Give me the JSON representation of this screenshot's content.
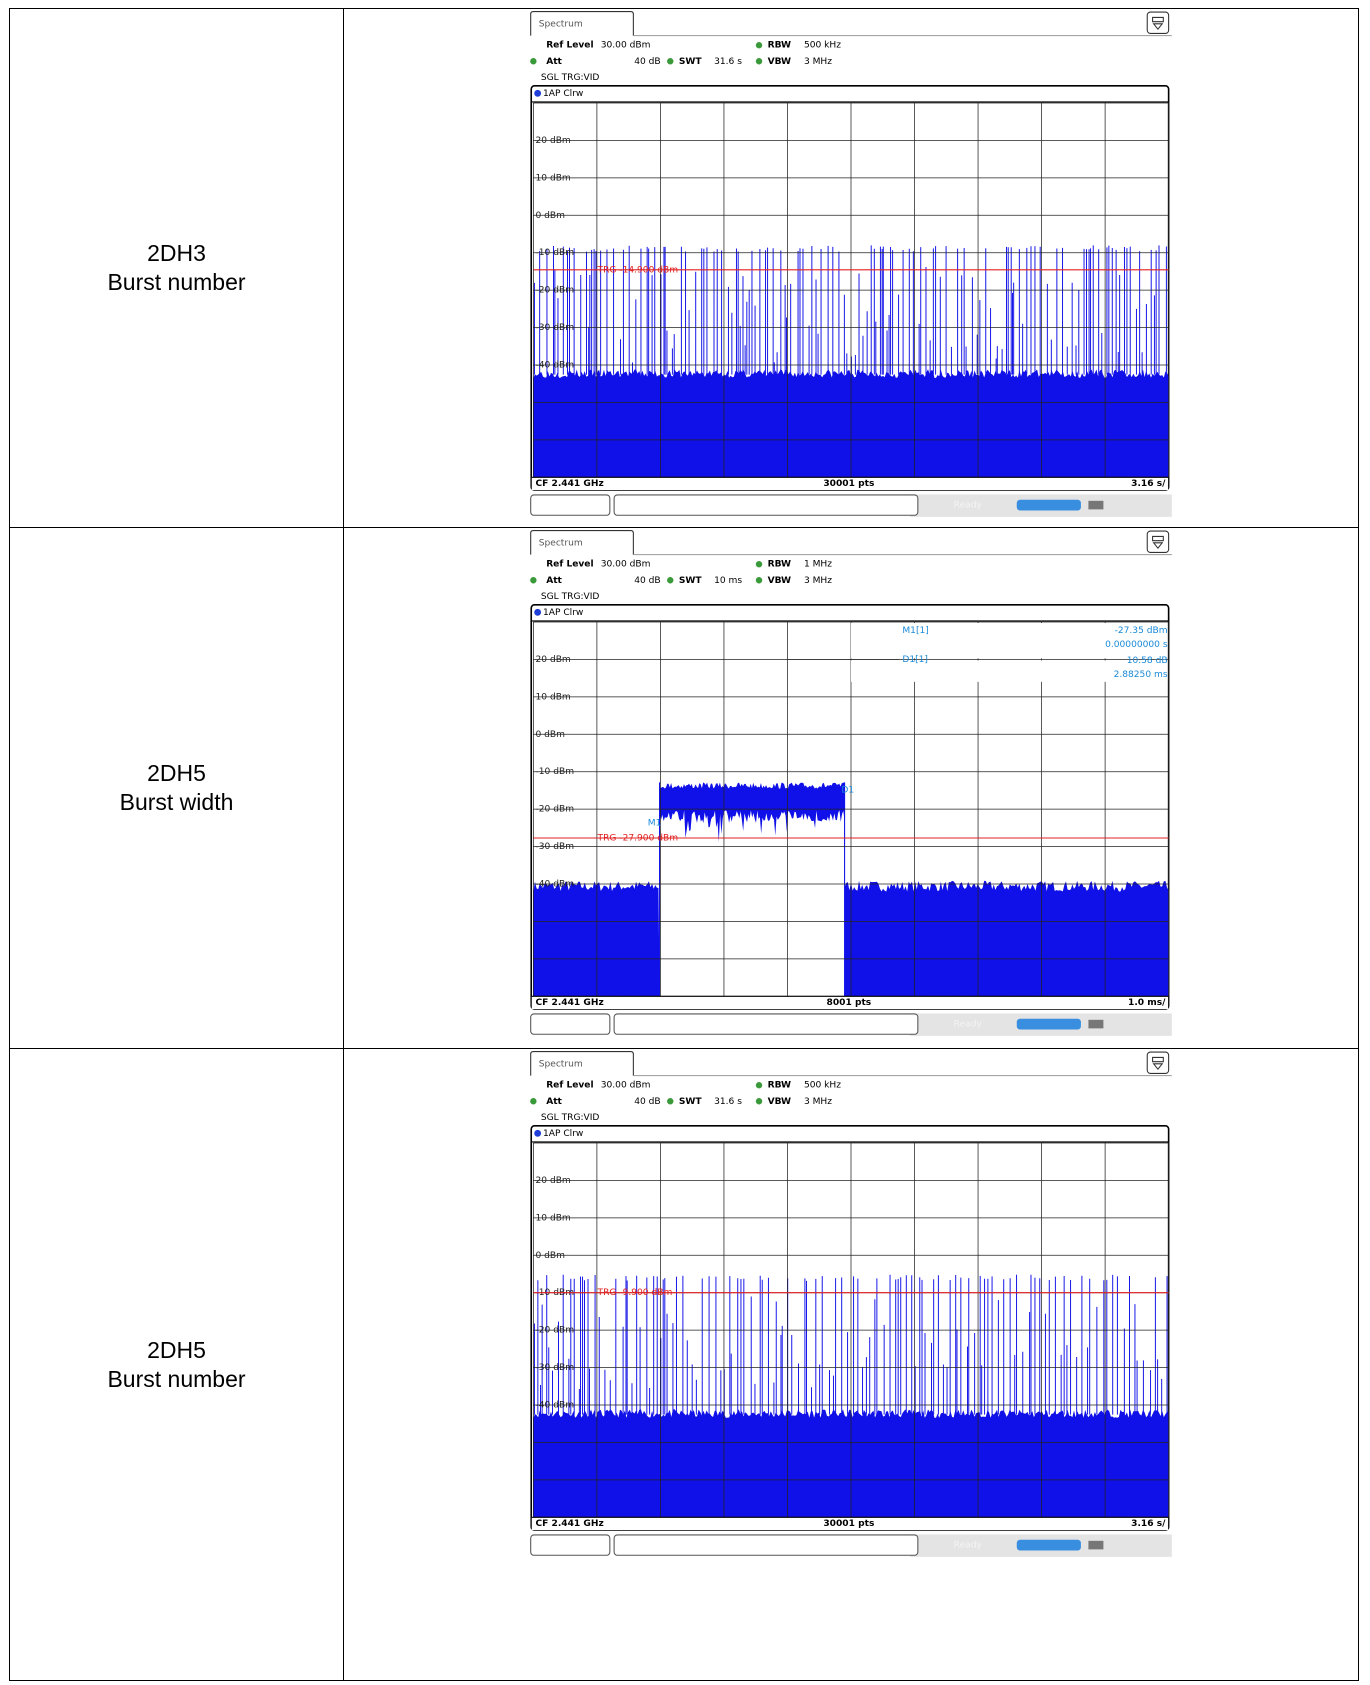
{
  "table": {
    "rows": [
      {
        "label": [
          "2DH3",
          "Burst number"
        ],
        "screen": {
          "tab": "Spectrum",
          "ref_level_label": "Ref Level",
          "ref_level": "30.00 dBm",
          "att_label": "Att",
          "att": "40 dB",
          "swt_label": "SWT",
          "swt": "31.6 s",
          "rbw_label": "RBW",
          "rbw": "500 kHz",
          "vbw_label": "VBW",
          "vbw": "3 MHz",
          "mode": "SGL TRG:VID",
          "trace": "1AP Clrw",
          "yticks": [
            "20 dBm",
            "10 dBm",
            "0 dBm",
            "-10 dBm",
            "-20 dBm",
            "-30 dBm",
            "-40 dBm"
          ],
          "trigger": "TRG  -14.900 dBm",
          "center": "CF 2.441 GHz",
          "points": "30001 pts",
          "scale": "3.16 s/",
          "status": "Ready"
        }
      },
      {
        "label": [
          "2DH5",
          "Burst width"
        ],
        "screen": {
          "tab": "Spectrum",
          "ref_level_label": "Ref Level",
          "ref_level": "30.00 dBm",
          "att_label": "Att",
          "att": "40 dB",
          "swt_label": "SWT",
          "swt": "10 ms",
          "rbw_label": "RBW",
          "rbw": "1 MHz",
          "vbw_label": "VBW",
          "vbw": "3 MHz",
          "mode": "SGL TRG:VID",
          "trace": "1AP Clrw",
          "yticks": [
            "20 dBm",
            "10 dBm",
            "0 dBm",
            "-10 dBm",
            "-20 dBm",
            "-30 dBm",
            "-40 dBm"
          ],
          "trigger": "TRG  -27.900 dBm",
          "center": "CF 2.441 GHz",
          "points": "8001 pts",
          "scale": "1.0 ms/",
          "status": "Ready",
          "markers": [
            {
              "name": "M1[1]",
              "values": [
                "-27.35 dBm",
                "0.00000000 s"
              ]
            },
            {
              "name": "D1[1]",
              "values": [
                "10.58 dB",
                "2.88250 ms"
              ]
            }
          ],
          "marker_tags": [
            "M1",
            "D1"
          ]
        }
      },
      {
        "label": [
          "2DH5",
          "Burst number"
        ],
        "screen": {
          "tab": "Spectrum",
          "ref_level_label": "Ref Level",
          "ref_level": "30.00 dBm",
          "att_label": "Att",
          "att": "40 dB",
          "swt_label": "SWT",
          "swt": "31.6 s",
          "rbw_label": "RBW",
          "rbw": "500 kHz",
          "vbw_label": "VBW",
          "vbw": "3 MHz",
          "mode": "SGL TRG:VID",
          "trace": "1AP Clrw",
          "yticks": [
            "20 dBm",
            "10 dBm",
            "0 dBm",
            "-10 dBm",
            "-20 dBm",
            "-30 dBm",
            "-40 dBm"
          ],
          "trigger": "TRG  -9.900 dBm",
          "center": "CF 2.441 GHz",
          "points": "30001 pts",
          "scale": "3.16 s/",
          "status": "Ready"
        }
      }
    ]
  }
}
